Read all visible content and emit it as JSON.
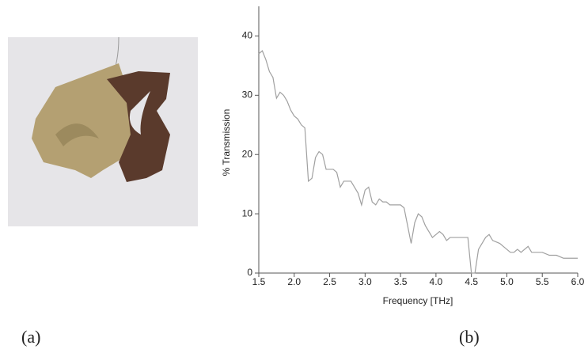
{
  "figure": {
    "labels": [
      "(a)",
      "(b)"
    ]
  },
  "chart_data": {
    "type": "line",
    "xlabel": "Frequency [THz]",
    "ylabel": "% Transmission",
    "x": [
      1.5,
      1.55,
      1.6,
      1.65,
      1.7,
      1.75,
      1.8,
      1.85,
      1.9,
      1.95,
      2.0,
      2.05,
      2.1,
      2.15,
      2.2,
      2.25,
      2.3,
      2.35,
      2.4,
      2.45,
      2.5,
      2.55,
      2.6,
      2.65,
      2.7,
      2.75,
      2.8,
      2.85,
      2.9,
      2.95,
      3.0,
      3.05,
      3.1,
      3.15,
      3.2,
      3.25,
      3.3,
      3.35,
      3.4,
      3.5,
      3.55,
      3.6,
      3.65,
      3.7,
      3.75,
      3.8,
      3.85,
      3.9,
      3.95,
      4.0,
      4.05,
      4.1,
      4.15,
      4.2,
      4.3,
      4.4,
      4.45,
      4.5,
      4.55,
      4.6,
      4.7,
      4.75,
      4.8,
      4.9,
      5.0,
      5.05,
      5.1,
      5.15,
      5.2,
      5.3,
      5.35,
      5.4,
      5.5,
      5.6,
      5.7,
      5.8,
      5.9,
      6.0
    ],
    "series": [
      {
        "color": "#a0a0a0",
        "values": [
          37,
          37.5,
          36,
          34,
          33,
          29.5,
          30.5,
          30,
          29,
          27.5,
          26.5,
          26,
          25,
          24.5,
          15.5,
          16,
          19.5,
          20.5,
          20,
          17.5,
          17.5,
          17.5,
          17,
          14.5,
          15.5,
          15.5,
          15.5,
          14.5,
          13.5,
          11.5,
          14,
          14.5,
          12,
          11.5,
          12.5,
          12,
          12,
          11.5,
          11.5,
          11.5,
          11,
          8,
          5,
          8.5,
          10,
          9.5,
          8,
          7,
          6,
          6.5,
          7,
          6.5,
          5.5,
          6,
          6,
          6,
          6,
          0,
          0,
          4,
          6,
          6.5,
          5.5,
          5,
          4,
          3.5,
          3.5,
          4,
          3.5,
          4.5,
          3.5,
          3.5,
          3.5,
          3,
          3,
          2.5,
          2.5,
          2.5
        ]
      }
    ],
    "xlim": [
      1.5,
      6.0
    ],
    "ylim": [
      0,
      45
    ],
    "xticks": [
      1.5,
      {
        "value": 2,
        "label": "2.0"
      },
      2.5,
      {
        "value": 3,
        "label": "3.0"
      },
      3.5,
      {
        "value": 4,
        "label": "4.0"
      },
      4.5,
      {
        "value": 5,
        "label": "5.0"
      },
      5.5,
      {
        "value": 6,
        "label": "6.0"
      }
    ],
    "yticks": [
      0,
      10,
      20,
      30,
      40
    ]
  }
}
